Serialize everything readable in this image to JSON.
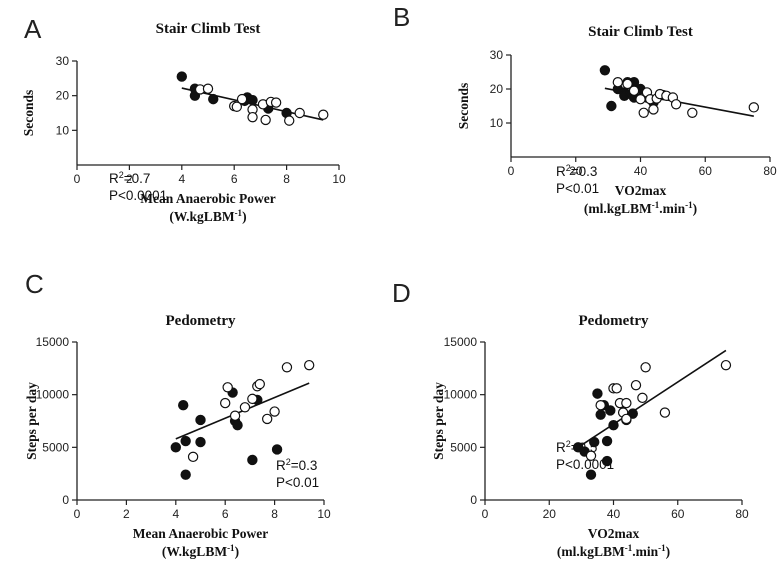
{
  "chart_data": [
    {
      "type": "scatter",
      "panel": "A",
      "title": "Stair Climb Test",
      "ylabel": "Seconds",
      "xlabel": "Mean Anaerobic Power",
      "xlabel_line2": "(W.kgLBM",
      "xlabel_line2_sup": "-1",
      "xlabel_line2_end": ")",
      "xlim": [
        0,
        10
      ],
      "ylim": [
        0,
        30
      ],
      "xticks": [
        "0",
        "2",
        "4",
        "6",
        "8",
        "10"
      ],
      "yticks": [
        "10",
        "20",
        "30"
      ],
      "stat_r2": "=0.7",
      "stat_p": "P<0.0001",
      "regression": {
        "x1": 4.0,
        "y1": 22.2,
        "x2": 9.4,
        "y2": 13.0
      },
      "series": [
        {
          "filled": true,
          "points": [
            [
              4.0,
              25.5
            ],
            [
              4.5,
              20.0
            ],
            [
              4.5,
              22.0
            ],
            [
              5.2,
              19.0
            ],
            [
              6.4,
              18.5
            ],
            [
              6.5,
              19.5
            ],
            [
              6.7,
              18.7
            ],
            [
              7.3,
              16.3
            ],
            [
              8.0,
              15.0
            ]
          ]
        },
        {
          "filled": false,
          "points": [
            [
              4.7,
              21.8
            ],
            [
              5.0,
              22.0
            ],
            [
              6.0,
              17.0
            ],
            [
              6.1,
              16.8
            ],
            [
              6.3,
              19.0
            ],
            [
              6.7,
              16.0
            ],
            [
              6.7,
              13.8
            ],
            [
              7.1,
              17.5
            ],
            [
              7.2,
              13.0
            ],
            [
              7.4,
              18.2
            ],
            [
              7.6,
              18.0
            ],
            [
              8.1,
              12.8
            ],
            [
              8.5,
              15.0
            ],
            [
              9.4,
              14.5
            ]
          ]
        }
      ]
    },
    {
      "type": "scatter",
      "panel": "B",
      "title": "Stair Climb Test",
      "ylabel": "Seconds",
      "xlabel": "VO2max",
      "xlabel_line2": "(ml.kgLBM",
      "xlabel_line2_sup": "-1",
      "xlabel_line2_end": ".min",
      "xlabel_line2_sup2": "-1",
      "xlabel_line2_close": ")",
      "xlim": [
        0,
        80
      ],
      "ylim": [
        0,
        30
      ],
      "xticks": [
        "0",
        "20",
        "40",
        "60",
        "80"
      ],
      "yticks": [
        "10",
        "20",
        "30"
      ],
      "stat_r2": "=0.3",
      "stat_p": "P<0.01",
      "regression": {
        "x1": 29,
        "y1": 20.2,
        "x2": 75,
        "y2": 12.0
      },
      "series": [
        {
          "filled": true,
          "points": [
            [
              29,
              25.5
            ],
            [
              31,
              15.0
            ],
            [
              33,
              20.0
            ],
            [
              35,
              19.0
            ],
            [
              35,
              18.0
            ],
            [
              36,
              22.0
            ],
            [
              37,
              18.5
            ],
            [
              38,
              22.0
            ],
            [
              38,
              17.5
            ],
            [
              40,
              20.0
            ],
            [
              42,
              17.5
            ],
            [
              44,
              16.0
            ],
            [
              47,
              18.2
            ]
          ]
        },
        {
          "filled": false,
          "points": [
            [
              33,
              22.0
            ],
            [
              36,
              21.5
            ],
            [
              38,
              19.5
            ],
            [
              40,
              17.0
            ],
            [
              41,
              13.0
            ],
            [
              42,
              19.0
            ],
            [
              43,
              17.0
            ],
            [
              44,
              14.0
            ],
            [
              45,
              17.2
            ],
            [
              46,
              18.5
            ],
            [
              48,
              18.0
            ],
            [
              50,
              17.5
            ],
            [
              51,
              15.5
            ],
            [
              56,
              13.0
            ],
            [
              75,
              14.6
            ]
          ]
        }
      ]
    },
    {
      "type": "scatter",
      "panel": "C",
      "title": "Pedometry",
      "ylabel": "Steps per day",
      "xlabel": "Mean Anaerobic Power",
      "xlabel_line2": "(W.kgLBM",
      "xlabel_line2_sup": "-1",
      "xlabel_line2_end": ")",
      "xlim": [
        0,
        10
      ],
      "ylim": [
        0,
        15000
      ],
      "xticks": [
        "0",
        "2",
        "4",
        "6",
        "8",
        "10"
      ],
      "yticks": [
        "0",
        "5000",
        "10000",
        "15000"
      ],
      "stat_r2": "=0.3",
      "stat_p": "P<0.01",
      "regression": {
        "x1": 4.0,
        "y1": 5800,
        "x2": 9.4,
        "y2": 11100
      },
      "series": [
        {
          "filled": true,
          "points": [
            [
              4.0,
              5000
            ],
            [
              4.3,
              9000
            ],
            [
              4.4,
              5600
            ],
            [
              4.4,
              2400
            ],
            [
              5.0,
              5500
            ],
            [
              5.0,
              7600
            ],
            [
              6.3,
              10200
            ],
            [
              6.4,
              7500
            ],
            [
              6.5,
              7100
            ],
            [
              7.1,
              3800
            ],
            [
              7.3,
              9500
            ],
            [
              8.1,
              4800
            ]
          ]
        },
        {
          "filled": false,
          "points": [
            [
              4.7,
              4100
            ],
            [
              6.0,
              9200
            ],
            [
              6.1,
              10700
            ],
            [
              6.4,
              8000
            ],
            [
              6.8,
              8800
            ],
            [
              7.1,
              9600
            ],
            [
              7.3,
              10800
            ],
            [
              7.4,
              11000
            ],
            [
              7.7,
              7700
            ],
            [
              8.0,
              8400
            ],
            [
              8.5,
              12600
            ],
            [
              9.4,
              12800
            ]
          ]
        }
      ]
    },
    {
      "type": "scatter",
      "panel": "D",
      "title": "Pedometry",
      "ylabel": "Steps per day",
      "xlabel": "VO2max",
      "xlabel_line2": "(ml.kgLBM",
      "xlabel_line2_sup": "-1",
      "xlabel_line2_end": ".min",
      "xlabel_line2_sup2": "-1",
      "xlabel_line2_close": ")",
      "xlim": [
        0,
        80
      ],
      "ylim": [
        0,
        15000
      ],
      "xticks": [
        "0",
        "20",
        "40",
        "60",
        "80"
      ],
      "yticks": [
        "0",
        "5000",
        "10000",
        "15000"
      ],
      "stat_r2": "=0.5",
      "stat_p": "P<0.0001",
      "regression": {
        "x1": 29,
        "y1": 5000,
        "x2": 75,
        "y2": 14200
      },
      "series": [
        {
          "filled": true,
          "points": [
            [
              29,
              5000
            ],
            [
              31,
              4600
            ],
            [
              33,
              2400
            ],
            [
              34,
              5500
            ],
            [
              35,
              10100
            ],
            [
              36,
              8100
            ],
            [
              37,
              9000
            ],
            [
              38,
              5600
            ],
            [
              38,
              3700
            ],
            [
              39,
              8500
            ],
            [
              40,
              7100
            ],
            [
              43,
              9100
            ],
            [
              44,
              7600
            ],
            [
              46,
              8200
            ]
          ]
        },
        {
          "filled": false,
          "points": [
            [
              33,
              4200
            ],
            [
              36,
              9000
            ],
            [
              40,
              10600
            ],
            [
              41,
              10600
            ],
            [
              42,
              9200
            ],
            [
              43,
              8300
            ],
            [
              44,
              9200
            ],
            [
              44,
              7700
            ],
            [
              47,
              10900
            ],
            [
              49,
              9700
            ],
            [
              50,
              12600
            ],
            [
              56,
              8300
            ],
            [
              75,
              12800
            ]
          ]
        }
      ]
    }
  ]
}
